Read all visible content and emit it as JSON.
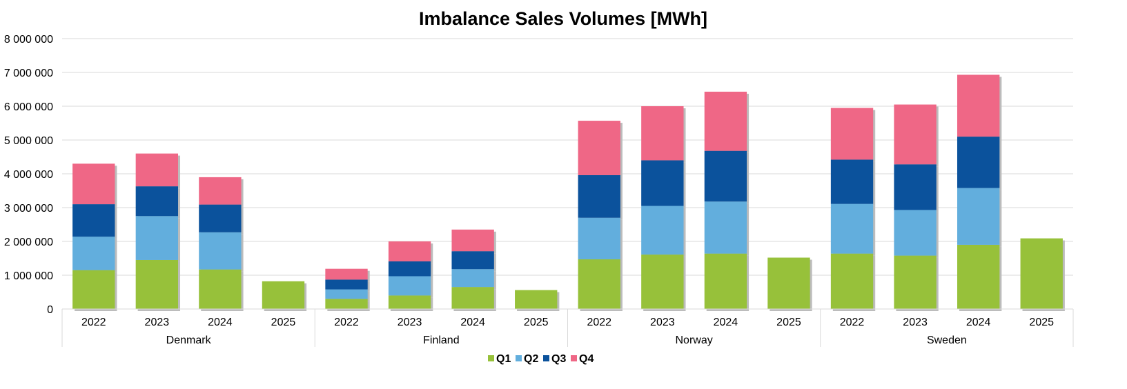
{
  "chart_data": {
    "type": "bar",
    "stacked": true,
    "title": "Imbalance Sales Volumes [MWh]",
    "xlabel": "",
    "ylabel": "",
    "ylim": [
      0,
      8000000
    ],
    "yticks": [
      0,
      1000000,
      2000000,
      3000000,
      4000000,
      5000000,
      6000000,
      7000000,
      8000000
    ],
    "ytick_labels": [
      "0",
      "1 000 000",
      "2 000 000",
      "3 000 000",
      "4 000 000",
      "5 000 000",
      "6 000 000",
      "7 000 000",
      "8 000 000"
    ],
    "grid": true,
    "legend_position": "bottom",
    "groups": [
      {
        "name": "Denmark",
        "categories": [
          "2022",
          "2023",
          "2024",
          "2025"
        ]
      },
      {
        "name": "Finland",
        "categories": [
          "2022",
          "2023",
          "2024",
          "2025"
        ]
      },
      {
        "name": "Norway",
        "categories": [
          "2022",
          "2023",
          "2024",
          "2025"
        ]
      },
      {
        "name": "Sweden",
        "categories": [
          "2022",
          "2023",
          "2024",
          "2025"
        ]
      }
    ],
    "series": [
      {
        "name": "Q1",
        "color": "#97c13a",
        "values": [
          1150000,
          1450000,
          1170000,
          820000,
          300000,
          400000,
          650000,
          560000,
          1470000,
          1610000,
          1640000,
          1520000,
          1640000,
          1580000,
          1900000,
          2090000
        ]
      },
      {
        "name": "Q2",
        "color": "#62aedd",
        "values": [
          990000,
          1300000,
          1100000,
          0,
          280000,
          570000,
          530000,
          0,
          1230000,
          1440000,
          1540000,
          0,
          1470000,
          1350000,
          1680000,
          0
        ]
      },
      {
        "name": "Q3",
        "color": "#0b529c",
        "values": [
          960000,
          880000,
          820000,
          0,
          290000,
          440000,
          530000,
          0,
          1260000,
          1350000,
          1500000,
          0,
          1310000,
          1350000,
          1520000,
          0
        ]
      },
      {
        "name": "Q4",
        "color": "#ef6786",
        "values": [
          1200000,
          970000,
          810000,
          0,
          320000,
          590000,
          640000,
          0,
          1610000,
          1600000,
          1750000,
          0,
          1530000,
          1770000,
          1830000,
          0
        ]
      }
    ]
  }
}
